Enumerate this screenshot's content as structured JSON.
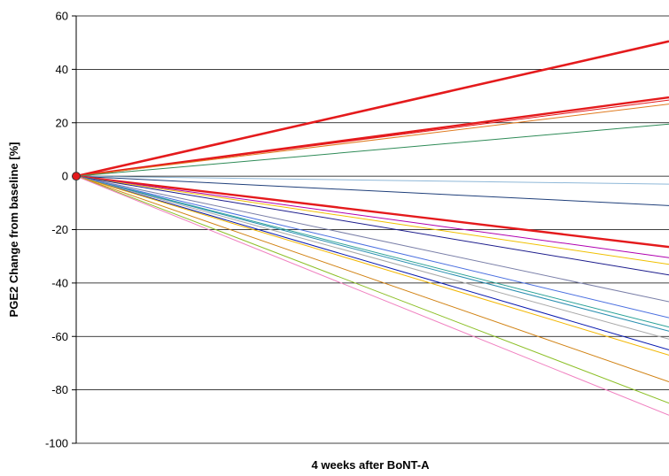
{
  "chart_data": {
    "type": "line",
    "title": "",
    "xlabel": "4 weeks after BoNT-A",
    "ylabel": "PGE2 Change from baseline [%]",
    "ylim": [
      -100,
      60
    ],
    "yticks": [
      60,
      40,
      20,
      0,
      -20,
      -40,
      -60,
      -80,
      -100
    ],
    "grid": true,
    "legend": "none",
    "x": [
      0,
      1
    ],
    "series": [
      {
        "values": [
          0,
          50.5
        ],
        "color": "#e41a1c",
        "width": 2.6
      },
      {
        "values": [
          0,
          29.5
        ],
        "color": "#e41a1c",
        "width": 2.4
      },
      {
        "values": [
          0,
          28.5
        ],
        "color": "#e41a1c",
        "width": 1
      },
      {
        "values": [
          0,
          27
        ],
        "color": "#e07b20",
        "width": 1
      },
      {
        "values": [
          0,
          19.5
        ],
        "color": "#2e8b57",
        "width": 1
      },
      {
        "values": [
          0,
          -3
        ],
        "color": "#8fb8d8",
        "width": 1
      },
      {
        "values": [
          0,
          -11
        ],
        "color": "#1f3f7a",
        "width": 1
      },
      {
        "values": [
          0,
          -26.5
        ],
        "color": "#e41a1c",
        "width": 2.4
      },
      {
        "values": [
          0,
          -30.5
        ],
        "color": "#b000b0",
        "width": 1
      },
      {
        "values": [
          0,
          -33
        ],
        "color": "#f0c000",
        "width": 1
      },
      {
        "values": [
          0,
          -37
        ],
        "color": "#1c1c8c",
        "width": 1
      },
      {
        "values": [
          0,
          -47
        ],
        "color": "#7a7fa8",
        "width": 1
      },
      {
        "values": [
          0,
          -53
        ],
        "color": "#4a6fe0",
        "width": 1
      },
      {
        "values": [
          0,
          -56.5
        ],
        "color": "#2aa198",
        "width": 1
      },
      {
        "values": [
          0,
          -58
        ],
        "color": "#2a8fb0",
        "width": 1
      },
      {
        "values": [
          0,
          -61
        ],
        "color": "#a8a8a8",
        "width": 1
      },
      {
        "values": [
          0,
          -65
        ],
        "color": "#0a1ab0",
        "width": 1
      },
      {
        "values": [
          0,
          -67
        ],
        "color": "#f2b600",
        "width": 1
      },
      {
        "values": [
          0,
          -77
        ],
        "color": "#d08010",
        "width": 1
      },
      {
        "values": [
          0,
          -85
        ],
        "color": "#8cbf26",
        "width": 1
      },
      {
        "values": [
          0,
          -89.5
        ],
        "color": "#f080c0",
        "width": 1
      }
    ],
    "marker_color": "#e41a1c"
  }
}
